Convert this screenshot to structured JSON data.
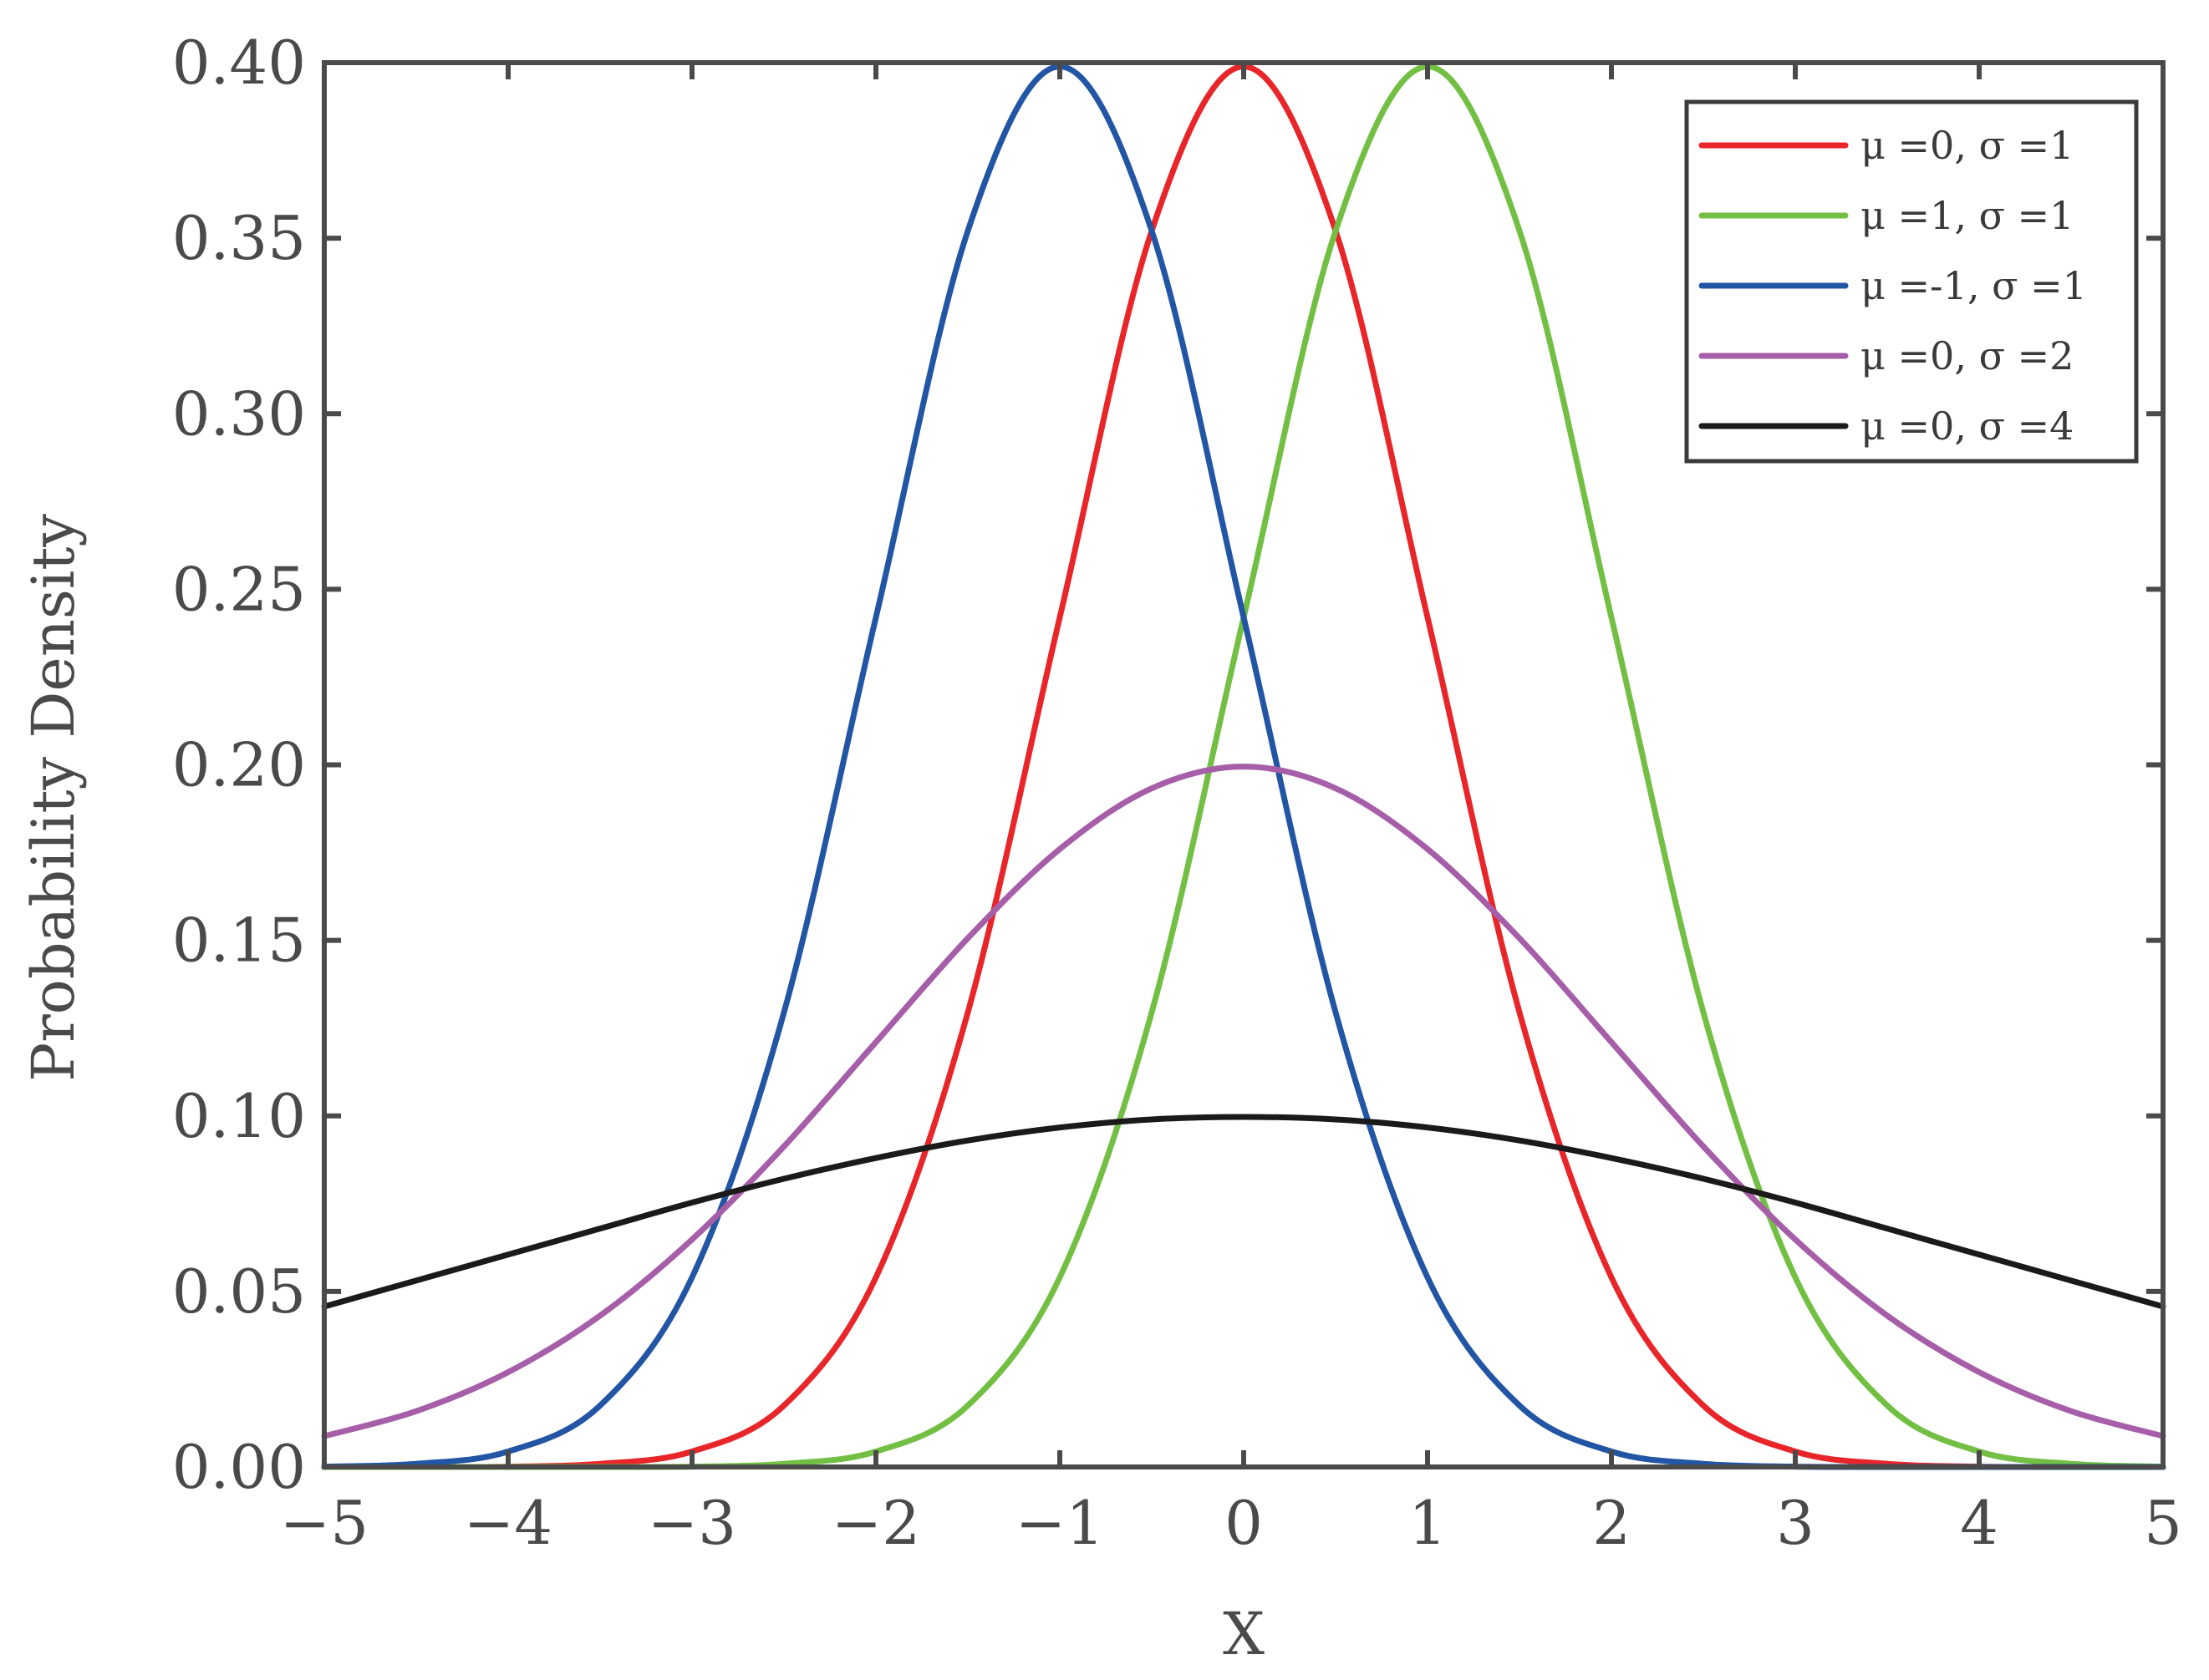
{
  "chart_data": {
    "type": "line",
    "title": "",
    "xlabel": "X",
    "ylabel": "Probability Density",
    "xlim": [
      -5,
      5
    ],
    "ylim": [
      0,
      0.4
    ],
    "xticks": [
      -5,
      -4,
      -3,
      -2,
      -1,
      0,
      1,
      2,
      3,
      4,
      5
    ],
    "xtick_labels": [
      "−5",
      "−4",
      "−3",
      "−2",
      "−1",
      "0",
      "1",
      "2",
      "3",
      "4",
      "5"
    ],
    "yticks": [
      0,
      0.05,
      0.1,
      0.15,
      0.2,
      0.25,
      0.3,
      0.35,
      0.4
    ],
    "ytick_labels": [
      "0.00",
      "0.05",
      "0.10",
      "0.15",
      "0.20",
      "0.25",
      "0.30",
      "0.35",
      "0.40"
    ],
    "grid": false,
    "legend_position": "top-right",
    "series": [
      {
        "name": "μ =0, σ =1",
        "color": "#e8262a",
        "x": [
          -5,
          -4.5,
          -4,
          -3.5,
          -3,
          -2.5,
          -2,
          -1.5,
          -1,
          -0.5,
          0,
          0.5,
          1,
          1.5,
          2,
          2.5,
          3,
          3.5,
          4,
          4.5,
          5
        ],
        "values": [
          0.0,
          0.0,
          0.0001,
          0.0009,
          0.0044,
          0.0175,
          0.054,
          0.1295,
          0.242,
          0.3521,
          0.3989,
          0.3521,
          0.242,
          0.1295,
          0.054,
          0.0175,
          0.0044,
          0.0009,
          0.0001,
          0.0,
          0.0
        ]
      },
      {
        "name": "μ =1, σ =1",
        "color": "#72bf44",
        "x": [
          -5,
          -4.5,
          -4,
          -3.5,
          -3,
          -2.5,
          -2,
          -1.5,
          -1,
          -0.5,
          0,
          0.5,
          1,
          1.5,
          2,
          2.5,
          3,
          3.5,
          4,
          4.5,
          5
        ],
        "values": [
          0.0,
          0.0,
          0.0,
          0.0,
          0.0001,
          0.0009,
          0.0044,
          0.0175,
          0.054,
          0.1295,
          0.242,
          0.3521,
          0.3989,
          0.3521,
          0.242,
          0.1295,
          0.054,
          0.0175,
          0.0044,
          0.0009,
          0.0001
        ]
      },
      {
        "name": "μ =-1, σ =1",
        "color": "#2255a4",
        "x": [
          -5,
          -4.5,
          -4,
          -3.5,
          -3,
          -2.5,
          -2,
          -1.5,
          -1,
          -0.5,
          0,
          0.5,
          1,
          1.5,
          2,
          2.5,
          3,
          3.5,
          4,
          4.5,
          5
        ],
        "values": [
          0.0001,
          0.0009,
          0.0044,
          0.0175,
          0.054,
          0.1295,
          0.242,
          0.3521,
          0.3989,
          0.3521,
          0.242,
          0.1295,
          0.054,
          0.0175,
          0.0044,
          0.0009,
          0.0001,
          0.0,
          0.0,
          0.0,
          0.0
        ]
      },
      {
        "name": "μ =0, σ =2",
        "color": "#a65ea8",
        "x": [
          -5,
          -4.5,
          -4,
          -3.5,
          -3,
          -2.5,
          -2,
          -1.5,
          -1,
          -0.5,
          0,
          0.5,
          1,
          1.5,
          2,
          2.5,
          3,
          3.5,
          4,
          4.5,
          5
        ],
        "values": [
          0.0088,
          0.0159,
          0.027,
          0.0431,
          0.0648,
          0.0913,
          0.121,
          0.1506,
          0.176,
          0.1933,
          0.1995,
          0.1933,
          0.176,
          0.1506,
          0.121,
          0.0913,
          0.0648,
          0.0431,
          0.027,
          0.0159,
          0.0088
        ]
      },
      {
        "name": "μ =0, σ =4",
        "color": "#1a1a1a",
        "x": [
          -5,
          -4.5,
          -4,
          -3.5,
          -3,
          -2.5,
          -2,
          -1.5,
          -1,
          -0.5,
          0,
          0.5,
          1,
          1.5,
          2,
          2.5,
          3,
          3.5,
          4,
          4.5,
          5
        ],
        "values": [
          0.0457,
          0.0531,
          0.0605,
          0.0679,
          0.0753,
          0.0821,
          0.088,
          0.093,
          0.0967,
          0.099,
          0.0997,
          0.099,
          0.0967,
          0.093,
          0.088,
          0.0821,
          0.0753,
          0.0679,
          0.0605,
          0.0531,
          0.0457
        ]
      }
    ]
  },
  "colors": {
    "axis": "#4a4a4a",
    "legend_border": "#3a3a3a"
  }
}
